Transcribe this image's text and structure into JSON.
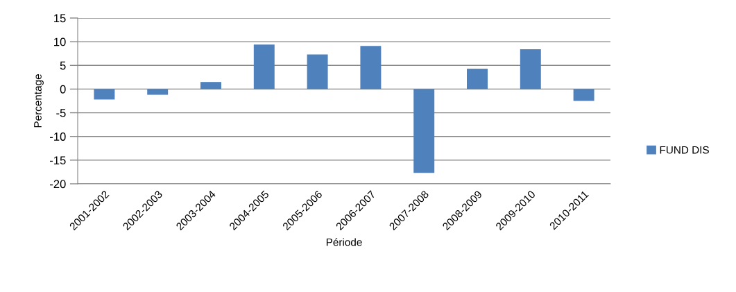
{
  "chart_data": {
    "type": "bar",
    "xlabel": "Période",
    "ylabel": "Percentage",
    "categories": [
      "2001-2002",
      "2002-2003",
      "2003-2004",
      "2004-2005",
      "2005-2006",
      "2006-2007",
      "2007-2008",
      "2008-2009",
      "2009-2010",
      "2010-2011"
    ],
    "series": [
      {
        "name": "FUND DIS",
        "color": "#4f81bd",
        "values": [
          -2.2,
          -1.2,
          1.5,
          9.4,
          7.3,
          9.1,
          -17.7,
          4.3,
          8.4,
          -2.5
        ]
      }
    ],
    "ylim": [
      -20,
      15
    ],
    "yticks": [
      -20,
      -15,
      -10,
      -5,
      0,
      5,
      10,
      15
    ],
    "grid": "y",
    "legend": "right"
  }
}
